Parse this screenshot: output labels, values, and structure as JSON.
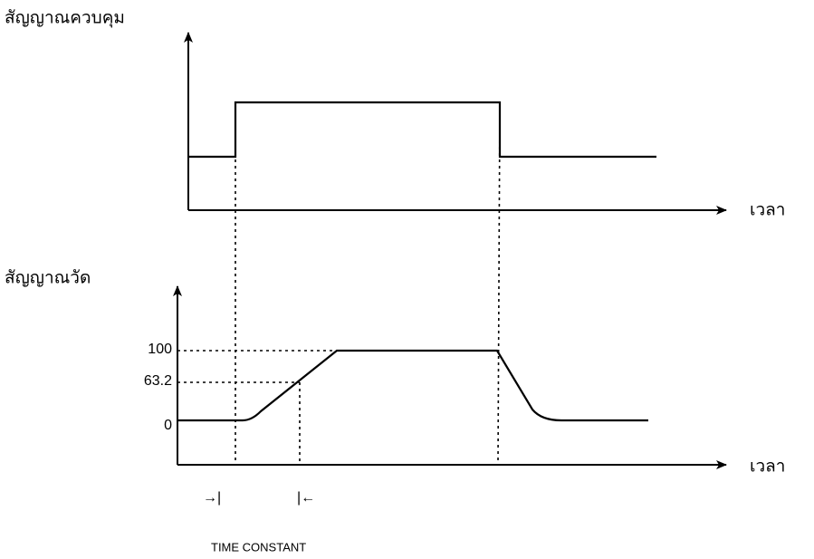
{
  "control_plot": {
    "y_label": "สัญญาณควบคุม",
    "x_label": "เวลา"
  },
  "measured_plot": {
    "y_label": "สัญญาณวัด",
    "x_label": "เวลา",
    "levels": [
      "100",
      "63.2",
      "0"
    ],
    "markers": [
      "→|",
      "|←"
    ],
    "caption": "TIME CONSTANT"
  }
}
